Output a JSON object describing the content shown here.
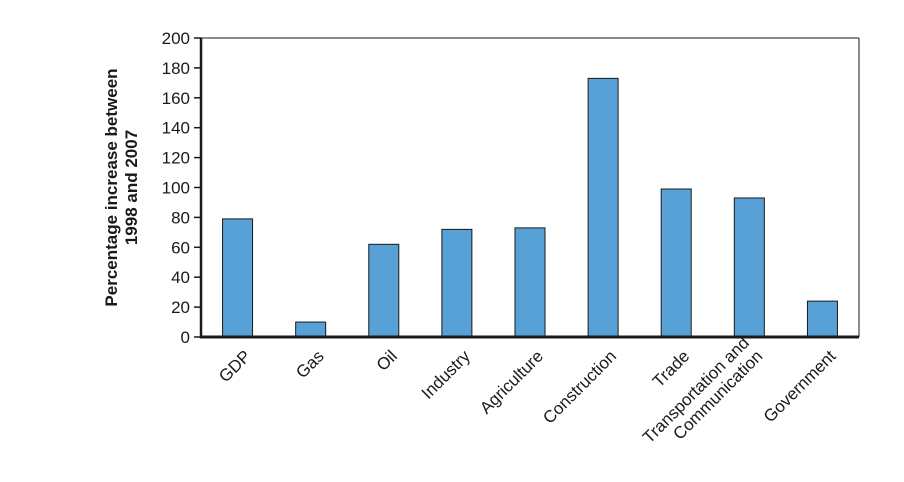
{
  "chart_data": {
    "type": "bar",
    "title": "",
    "xlabel": "",
    "ylabel_lines": [
      "Percentage increase between",
      "1998 and 2007"
    ],
    "ylim": [
      0,
      200
    ],
    "yticks": [
      0,
      20,
      40,
      60,
      80,
      100,
      120,
      140,
      160,
      180,
      200
    ],
    "categories": [
      [
        "GDP"
      ],
      [
        "Gas"
      ],
      [
        "Oil"
      ],
      [
        "Industry"
      ],
      [
        "Agriculture"
      ],
      [
        "Construction"
      ],
      [
        "Trade"
      ],
      [
        "Transportation and",
        "Communication"
      ],
      [
        "Government"
      ]
    ],
    "values": [
      79,
      10,
      62,
      72,
      73,
      173,
      99,
      93,
      24
    ],
    "grid": false,
    "legend": "none",
    "bar_color": "#58a1d6",
    "bar_edge_color": "#1a1a1a"
  }
}
